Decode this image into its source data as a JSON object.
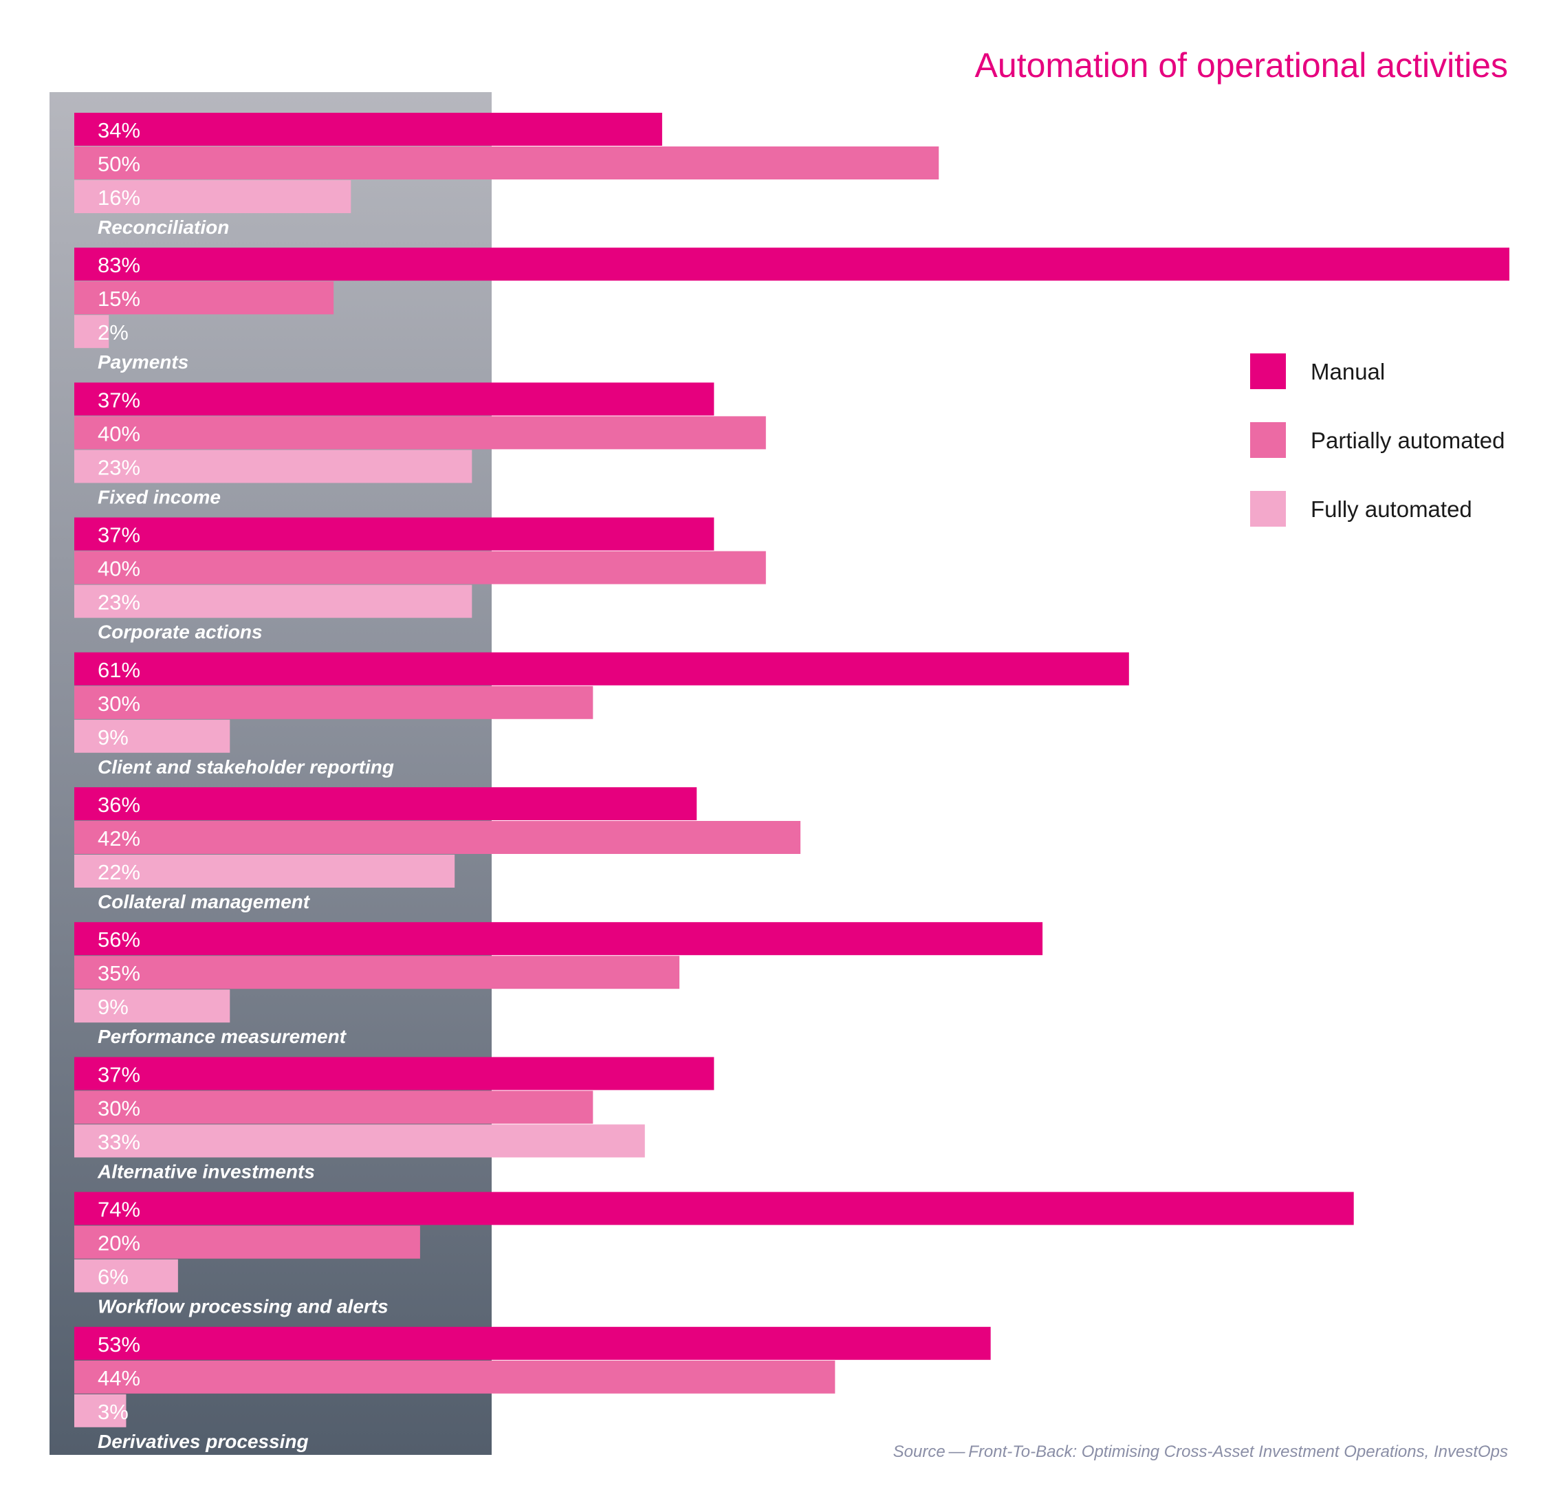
{
  "chart_data": {
    "type": "bar",
    "orientation": "horizontal",
    "title": "Automation of operational activities",
    "categories": [
      "Reconciliation",
      "Payments",
      "Fixed income",
      "Corporate actions",
      "Client and stakeholder reporting",
      "Collateral management",
      "Performance measurement",
      "Alternative investments",
      "Workflow processing and alerts",
      "Derivatives processing"
    ],
    "series": [
      {
        "name": "Manual",
        "color": "#e6007e",
        "values": [
          34,
          83,
          37,
          37,
          61,
          36,
          56,
          37,
          74,
          53
        ]
      },
      {
        "name": "Partially automated",
        "color": "#ec6aa4",
        "values": [
          50,
          15,
          40,
          40,
          30,
          42,
          35,
          30,
          20,
          44
        ]
      },
      {
        "name": "Fully automated",
        "color": "#f3a8cb",
        "values": [
          16,
          2,
          23,
          23,
          9,
          22,
          9,
          33,
          6,
          3
        ]
      }
    ],
    "value_suffix": "%",
    "xlim": [
      0,
      83
    ],
    "grid": false,
    "legend_position": "right",
    "source": "Source — Front-To-Back: Optimising Cross-Asset Investment Operations, InvestOps"
  }
}
